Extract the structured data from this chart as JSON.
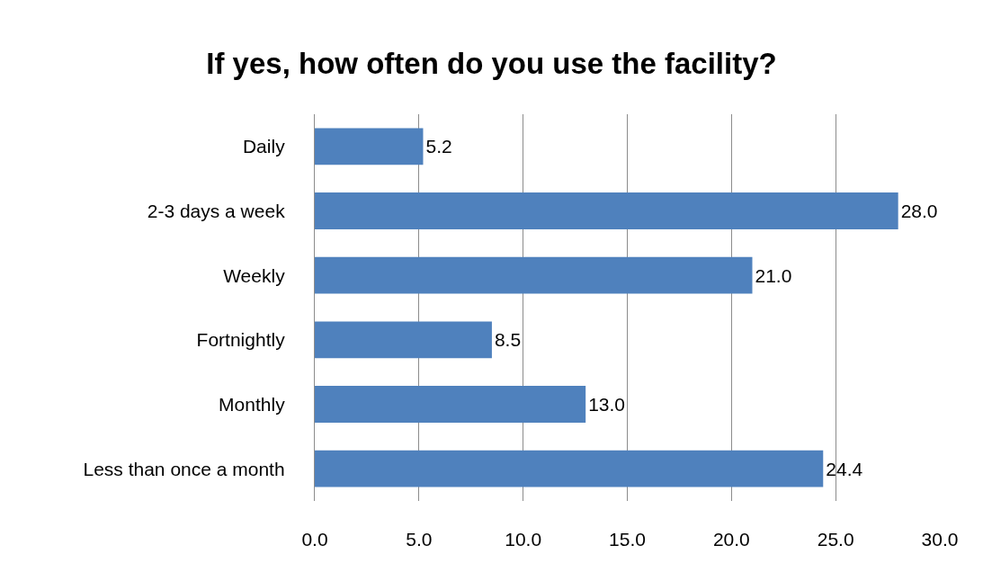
{
  "chart_data": {
    "type": "bar",
    "orientation": "horizontal",
    "title": "If yes, how often do you use the facility?",
    "categories": [
      "Daily",
      "2-3 days a week",
      "Weekly",
      "Fortnightly",
      "Monthly",
      "Less than once a month"
    ],
    "values": [
      5.2,
      28.0,
      21.0,
      8.5,
      13.0,
      24.4
    ],
    "value_labels": [
      "5.2",
      "28.0",
      "21.0",
      "8.5",
      "13.0",
      "24.4"
    ],
    "color": "#4f81bd",
    "xlim": [
      0,
      30
    ],
    "xticks": [
      {
        "value": 0,
        "label": "0.0"
      },
      {
        "value": 5,
        "label": "5.0"
      },
      {
        "value": 10,
        "label": "10.0"
      },
      {
        "value": 15,
        "label": "15.0"
      },
      {
        "value": 20,
        "label": "20.0"
      },
      {
        "value": 25,
        "label": "25.0"
      },
      {
        "value": 30,
        "label": "30.0"
      }
    ],
    "grid": "x"
  }
}
